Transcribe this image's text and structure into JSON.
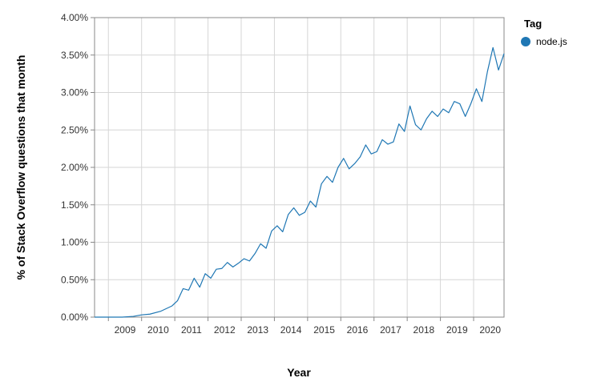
{
  "chart_data": {
    "type": "line",
    "xlabel": "Year",
    "ylabel": "% of Stack Overflow questions that month",
    "legend": {
      "title": "Tag",
      "placement": "top-right"
    },
    "grid": true,
    "x_ticks": [
      "2009",
      "2010",
      "2011",
      "2012",
      "2013",
      "2014",
      "2015",
      "2016",
      "2017",
      "2018",
      "2019",
      "2020"
    ],
    "y_ticks": [
      "0.00%",
      "0.50%",
      "1.00%",
      "1.50%",
      "2.00%",
      "2.50%",
      "3.00%",
      "3.50%",
      "4.00%"
    ],
    "xlim": [
      "2008-08",
      "2020-12"
    ],
    "ylim": [
      0,
      4
    ],
    "series": [
      {
        "name": "node.js",
        "color": "#1f77b4",
        "x": [
          "2008-08",
          "2009-01",
          "2009-06",
          "2009-10",
          "2010-01",
          "2010-04",
          "2010-08",
          "2010-12",
          "2011-02",
          "2011-04",
          "2011-06",
          "2011-08",
          "2011-10",
          "2011-12",
          "2012-02",
          "2012-04",
          "2012-06",
          "2012-08",
          "2012-10",
          "2012-12",
          "2013-02",
          "2013-04",
          "2013-06",
          "2013-08",
          "2013-10",
          "2013-12",
          "2014-02",
          "2014-04",
          "2014-06",
          "2014-08",
          "2014-10",
          "2014-12",
          "2015-02",
          "2015-04",
          "2015-06",
          "2015-08",
          "2015-10",
          "2015-12",
          "2016-02",
          "2016-04",
          "2016-06",
          "2016-08",
          "2016-10",
          "2016-12",
          "2017-02",
          "2017-04",
          "2017-06",
          "2017-08",
          "2017-10",
          "2017-12",
          "2018-02",
          "2018-04",
          "2018-06",
          "2018-08",
          "2018-10",
          "2018-12",
          "2019-02",
          "2019-04",
          "2019-06",
          "2019-08",
          "2019-10",
          "2019-12",
          "2020-02",
          "2020-04",
          "2020-06",
          "2020-08",
          "2020-10",
          "2020-12"
        ],
        "y": [
          0.0,
          0.0,
          0.0,
          0.01,
          0.03,
          0.04,
          0.08,
          0.15,
          0.22,
          0.38,
          0.36,
          0.52,
          0.4,
          0.58,
          0.52,
          0.64,
          0.65,
          0.73,
          0.67,
          0.72,
          0.78,
          0.75,
          0.85,
          0.98,
          0.92,
          1.15,
          1.22,
          1.14,
          1.37,
          1.46,
          1.36,
          1.4,
          1.55,
          1.47,
          1.78,
          1.88,
          1.8,
          2.0,
          2.12,
          1.98,
          2.05,
          2.14,
          2.3,
          2.18,
          2.21,
          2.37,
          2.31,
          2.34,
          2.58,
          2.48,
          2.82,
          2.57,
          2.5,
          2.65,
          2.75,
          2.68,
          2.78,
          2.73,
          2.88,
          2.85,
          2.68,
          2.85,
          3.05,
          2.88,
          3.28,
          3.6,
          3.3,
          3.52
        ]
      }
    ]
  }
}
